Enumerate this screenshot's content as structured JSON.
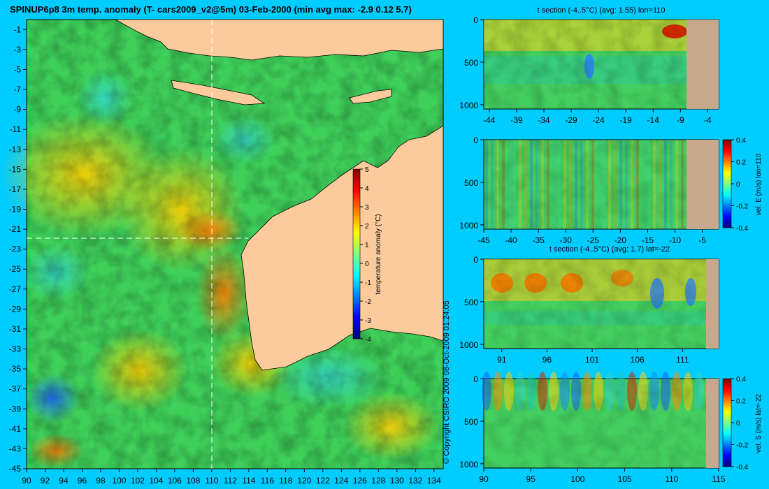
{
  "figure": {
    "title": "SPINUP6p8 3m temp. anomaly (T- cars2009_v2@5m) 03-Feb-2000 (min avg max: -2.9 0.12 5.7)",
    "copyright": "© Copyright CSIRO 2009   08-Oct-2009 01:24:05"
  },
  "colors": {
    "background": "#00ccff",
    "land": "#fccb9c",
    "section_land": "#c8a88a",
    "crosshair": "#ffffff",
    "colormap": [
      "#00007f",
      "#0000ff",
      "#007fff",
      "#00ffff",
      "#7fff7f",
      "#ffff00",
      "#ff7f00",
      "#ff0000",
      "#7f0000"
    ]
  },
  "chart_data": [
    {
      "type": "heatmap",
      "name": "map",
      "title": "SPINUP6p8 3m temp. anomaly (T- cars2009_v2@5m) 03-Feb-2000 (min avg max: -2.9 0.12 5.7)",
      "xlim": [
        90,
        135
      ],
      "ylim": [
        -45,
        0
      ],
      "x_ticks": [
        "90",
        "92",
        "94",
        "96",
        "98",
        "100",
        "102",
        "104",
        "106",
        "108",
        "110",
        "112",
        "114",
        "116",
        "118",
        "120",
        "122",
        "124",
        "126",
        "128",
        "130",
        "132",
        "134"
      ],
      "y_ticks": [
        "-1",
        "-3",
        "-5",
        "-7",
        "-9",
        "-11",
        "-13",
        "-15",
        "-17",
        "-19",
        "-21",
        "-23",
        "-25",
        "-27",
        "-29",
        "-31",
        "-33",
        "-35",
        "-37",
        "-39",
        "-41",
        "-43",
        "-45"
      ],
      "crosshair": {
        "lon": 110,
        "lat": -22
      },
      "colorbar": {
        "label": "temperature anomaly (°C)",
        "min": -4,
        "max": 5,
        "ticks": [
          "5",
          "4",
          "3",
          "2",
          "1",
          "0",
          "-1",
          "-2",
          "-3",
          "-4"
        ]
      },
      "stats": {
        "min": -2.9,
        "avg": 0.12,
        "max": 5.7
      }
    },
    {
      "type": "heatmap",
      "name": "t-section-lon110",
      "title": "t section (-4..5°C) (avg: 1.55) lon=110",
      "xlim": [
        -45,
        -2
      ],
      "ylim": [
        1050,
        0
      ],
      "x_ticks": [
        "-44",
        "-39",
        "-34",
        "-29",
        "-24",
        "-19",
        "-14",
        "-9",
        "-4"
      ],
      "y_ticks": [
        "0",
        "500",
        "1000"
      ],
      "avg": 1.55
    },
    {
      "type": "heatmap",
      "name": "velE-section-lon110",
      "title": "",
      "xlim": [
        -45,
        -2
      ],
      "ylim": [
        1050,
        0
      ],
      "x_ticks": [
        "-45",
        "-40",
        "-35",
        "-30",
        "-25",
        "-20",
        "-15",
        "-10",
        "-5"
      ],
      "y_ticks": [
        "0",
        "500",
        "1000"
      ],
      "colorbar": {
        "label": "vel. E (m/s) lon=110",
        "min": -0.4,
        "max": 0.4,
        "ticks": [
          "0.4",
          "0.2",
          "0",
          "-0.2",
          "-0.4"
        ]
      }
    },
    {
      "type": "heatmap",
      "name": "t-section-lat-22",
      "title": "t section (-4..5°C) (avg: 1.7) lat=-22",
      "xlim": [
        89,
        115
      ],
      "ylim": [
        1050,
        0
      ],
      "x_ticks": [
        "91",
        "96",
        "101",
        "106",
        "111"
      ],
      "y_ticks": [
        "0",
        "500",
        "1000"
      ],
      "avg": 1.7
    },
    {
      "type": "heatmap",
      "name": "velS-section-lat-22",
      "title": "",
      "xlim": [
        90,
        115
      ],
      "ylim": [
        1050,
        0
      ],
      "x_ticks": [
        "90",
        "95",
        "100",
        "105",
        "110",
        "115"
      ],
      "y_ticks": [
        "0",
        "500",
        "1000"
      ],
      "colorbar": {
        "label": "vel. S (m/s) lat=-22",
        "min": -0.4,
        "max": 0.4,
        "ticks": [
          "0.4",
          "0.2",
          "0",
          "-0.2",
          "-0.4"
        ]
      }
    }
  ]
}
